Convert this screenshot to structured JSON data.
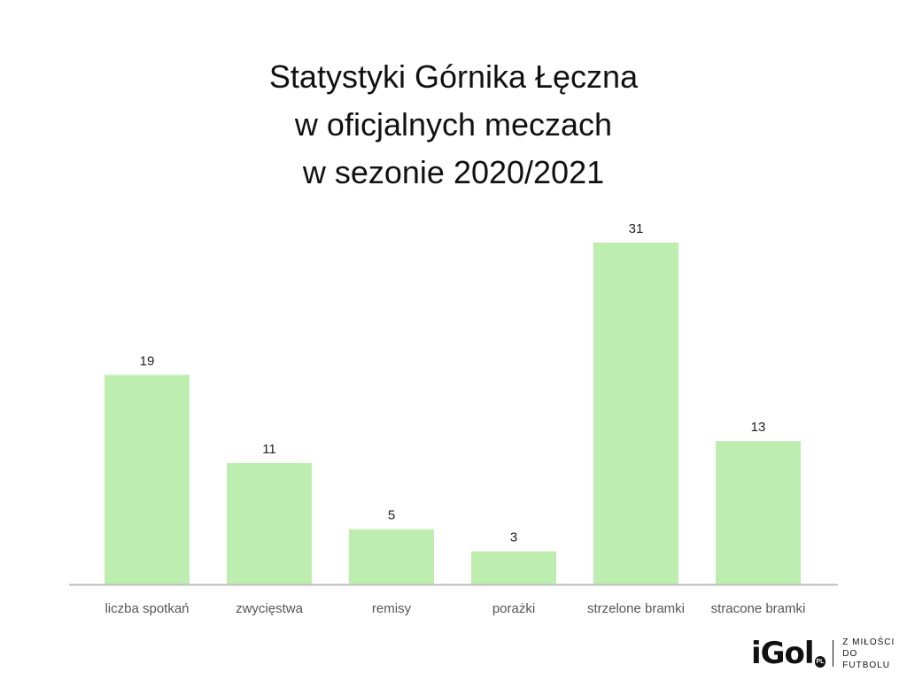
{
  "chart_data": {
    "type": "bar",
    "title": [
      "Statystyki Górnika Łęczna",
      "w oficjalnych meczach",
      "w sezonie 2020/2021"
    ],
    "categories": [
      "liczba spotkań",
      "zwycięstwa",
      "remisy",
      "porażki",
      "strzelone bramki",
      "stracone bramki"
    ],
    "values": [
      19,
      11,
      5,
      3,
      31,
      13
    ],
    "xlabel": "",
    "ylabel": "",
    "ylim": [
      0,
      31
    ],
    "grid": false,
    "legend": "none",
    "bar_color": "#bdeeb0",
    "axis_color": "#bdbdbd"
  },
  "logo": {
    "word": "iGol",
    "badge": "PL",
    "tagline_1": "Z MIŁOŚCI",
    "tagline_2": "DO FUTBOLU"
  }
}
